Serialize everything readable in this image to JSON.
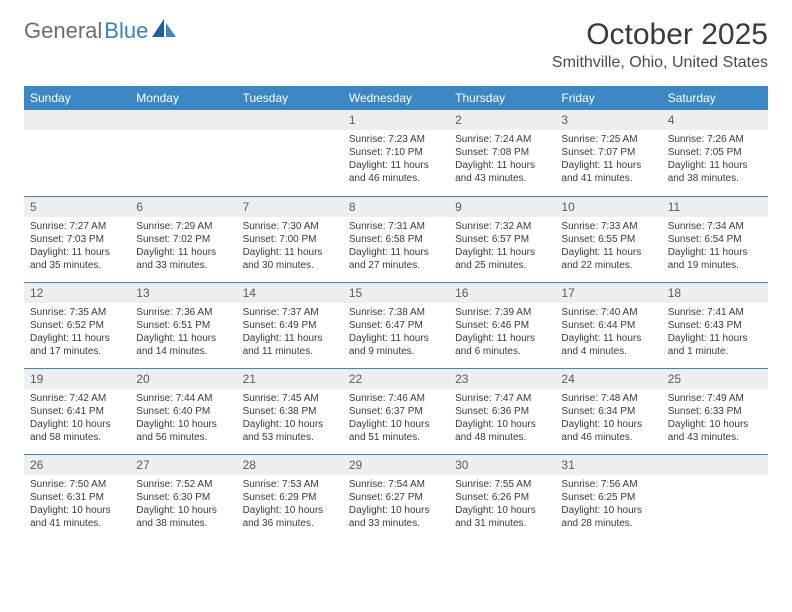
{
  "brand": {
    "part1": "General",
    "part2": "Blue"
  },
  "title": "October 2025",
  "location": "Smithville, Ohio, United States",
  "colors": {
    "header_bg": "#3b88c4",
    "header_text": "#ffffff",
    "daynum_bg": "#eceef0",
    "text": "#3a3a3a",
    "border": "#3b88c4",
    "logo_gray": "#6c6c6c",
    "logo_blue": "#3b7ec4"
  },
  "day_headers": [
    "Sunday",
    "Monday",
    "Tuesday",
    "Wednesday",
    "Thursday",
    "Friday",
    "Saturday"
  ],
  "weeks": [
    [
      null,
      null,
      null,
      {
        "n": "1",
        "sr": "7:23 AM",
        "ss": "7:10 PM",
        "dl": "11 hours and 46 minutes."
      },
      {
        "n": "2",
        "sr": "7:24 AM",
        "ss": "7:08 PM",
        "dl": "11 hours and 43 minutes."
      },
      {
        "n": "3",
        "sr": "7:25 AM",
        "ss": "7:07 PM",
        "dl": "11 hours and 41 minutes."
      },
      {
        "n": "4",
        "sr": "7:26 AM",
        "ss": "7:05 PM",
        "dl": "11 hours and 38 minutes."
      }
    ],
    [
      {
        "n": "5",
        "sr": "7:27 AM",
        "ss": "7:03 PM",
        "dl": "11 hours and 35 minutes."
      },
      {
        "n": "6",
        "sr": "7:29 AM",
        "ss": "7:02 PM",
        "dl": "11 hours and 33 minutes."
      },
      {
        "n": "7",
        "sr": "7:30 AM",
        "ss": "7:00 PM",
        "dl": "11 hours and 30 minutes."
      },
      {
        "n": "8",
        "sr": "7:31 AM",
        "ss": "6:58 PM",
        "dl": "11 hours and 27 minutes."
      },
      {
        "n": "9",
        "sr": "7:32 AM",
        "ss": "6:57 PM",
        "dl": "11 hours and 25 minutes."
      },
      {
        "n": "10",
        "sr": "7:33 AM",
        "ss": "6:55 PM",
        "dl": "11 hours and 22 minutes."
      },
      {
        "n": "11",
        "sr": "7:34 AM",
        "ss": "6:54 PM",
        "dl": "11 hours and 19 minutes."
      }
    ],
    [
      {
        "n": "12",
        "sr": "7:35 AM",
        "ss": "6:52 PM",
        "dl": "11 hours and 17 minutes."
      },
      {
        "n": "13",
        "sr": "7:36 AM",
        "ss": "6:51 PM",
        "dl": "11 hours and 14 minutes."
      },
      {
        "n": "14",
        "sr": "7:37 AM",
        "ss": "6:49 PM",
        "dl": "11 hours and 11 minutes."
      },
      {
        "n": "15",
        "sr": "7:38 AM",
        "ss": "6:47 PM",
        "dl": "11 hours and 9 minutes."
      },
      {
        "n": "16",
        "sr": "7:39 AM",
        "ss": "6:46 PM",
        "dl": "11 hours and 6 minutes."
      },
      {
        "n": "17",
        "sr": "7:40 AM",
        "ss": "6:44 PM",
        "dl": "11 hours and 4 minutes."
      },
      {
        "n": "18",
        "sr": "7:41 AM",
        "ss": "6:43 PM",
        "dl": "11 hours and 1 minute."
      }
    ],
    [
      {
        "n": "19",
        "sr": "7:42 AM",
        "ss": "6:41 PM",
        "dl": "10 hours and 58 minutes."
      },
      {
        "n": "20",
        "sr": "7:44 AM",
        "ss": "6:40 PM",
        "dl": "10 hours and 56 minutes."
      },
      {
        "n": "21",
        "sr": "7:45 AM",
        "ss": "6:38 PM",
        "dl": "10 hours and 53 minutes."
      },
      {
        "n": "22",
        "sr": "7:46 AM",
        "ss": "6:37 PM",
        "dl": "10 hours and 51 minutes."
      },
      {
        "n": "23",
        "sr": "7:47 AM",
        "ss": "6:36 PM",
        "dl": "10 hours and 48 minutes."
      },
      {
        "n": "24",
        "sr": "7:48 AM",
        "ss": "6:34 PM",
        "dl": "10 hours and 46 minutes."
      },
      {
        "n": "25",
        "sr": "7:49 AM",
        "ss": "6:33 PM",
        "dl": "10 hours and 43 minutes."
      }
    ],
    [
      {
        "n": "26",
        "sr": "7:50 AM",
        "ss": "6:31 PM",
        "dl": "10 hours and 41 minutes."
      },
      {
        "n": "27",
        "sr": "7:52 AM",
        "ss": "6:30 PM",
        "dl": "10 hours and 38 minutes."
      },
      {
        "n": "28",
        "sr": "7:53 AM",
        "ss": "6:29 PM",
        "dl": "10 hours and 36 minutes."
      },
      {
        "n": "29",
        "sr": "7:54 AM",
        "ss": "6:27 PM",
        "dl": "10 hours and 33 minutes."
      },
      {
        "n": "30",
        "sr": "7:55 AM",
        "ss": "6:26 PM",
        "dl": "10 hours and 31 minutes."
      },
      {
        "n": "31",
        "sr": "7:56 AM",
        "ss": "6:25 PM",
        "dl": "10 hours and 28 minutes."
      },
      null
    ]
  ],
  "labels": {
    "sunrise": "Sunrise:",
    "sunset": "Sunset:",
    "daylight": "Daylight:"
  }
}
